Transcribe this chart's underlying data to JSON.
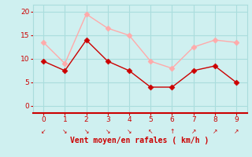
{
  "x": [
    0,
    1,
    2,
    3,
    4,
    5,
    6,
    7,
    8,
    9
  ],
  "wind_avg": [
    9.5,
    7.5,
    14.0,
    9.5,
    7.5,
    4.0,
    4.0,
    7.5,
    8.5,
    5.0
  ],
  "wind_gust": [
    13.5,
    9.0,
    19.5,
    16.5,
    15.0,
    9.5,
    8.0,
    12.5,
    14.0,
    13.5
  ],
  "avg_color": "#cc0000",
  "gust_color": "#ffaaaa",
  "bg_color": "#cff0f0",
  "grid_color": "#aadddd",
  "axis_color": "#cc0000",
  "xlabel": "Vent moyen/en rafales ( km/h )",
  "xlabel_color": "#cc0000",
  "tick_color": "#cc0000",
  "ylim": [
    -1.5,
    21.5
  ],
  "xlim": [
    -0.5,
    9.5
  ],
  "yticks": [
    0,
    5,
    10,
    15,
    20
  ],
  "xticks": [
    0,
    1,
    2,
    3,
    4,
    5,
    6,
    7,
    8,
    9
  ],
  "marker_size": 3.5,
  "line_width": 1.0
}
